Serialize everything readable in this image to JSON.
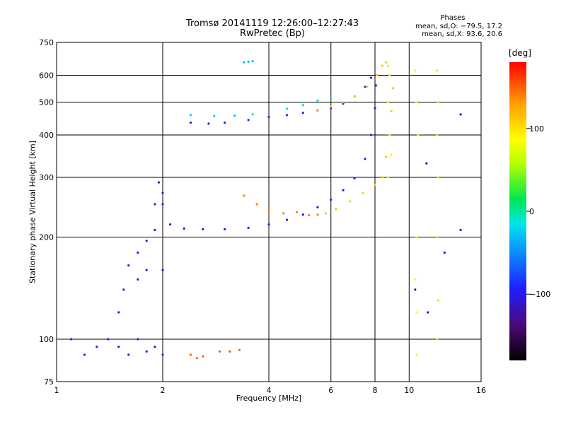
{
  "header": {
    "title_line1": "Tromsø 20141119 12:26:00–12:27:43",
    "title_line2": "RwPretec (Bp)"
  },
  "phase_box": {
    "title": "Phases",
    "line1": "mean, sd,O: −79.5, 17.2",
    "line2": "mean, sd,X:  93.6, 20.6"
  },
  "colorbar": {
    "unit": "[deg]",
    "ticks": [
      {
        "value": 100,
        "label": "100"
      },
      {
        "value": 0,
        "label": "0"
      },
      {
        "value": -100,
        "label": "−100"
      }
    ],
    "range": [
      -180,
      180
    ],
    "colors": [
      "#000000",
      "#4b0a7a",
      "#1e1eff",
      "#0a8cff",
      "#00e6e6",
      "#00e650",
      "#b4ff00",
      "#ffff00",
      "#ffa000",
      "#ff0000"
    ]
  },
  "chart_data": {
    "type": "scatter",
    "xlabel": "Frequency [MHz]",
    "ylabel": "Stationary phase Virtual Height [km]",
    "xscale": "log",
    "yscale": "log",
    "xlim": [
      1,
      16
    ],
    "ylim": [
      75,
      750
    ],
    "xticks": [
      1,
      2,
      4,
      6,
      8,
      10,
      16
    ],
    "xtick_labels": [
      "1",
      "2",
      "4",
      "6",
      "8",
      "10",
      "16"
    ],
    "yticks": [
      75,
      100,
      200,
      300,
      400,
      500,
      600,
      750
    ],
    "ytick_labels": [
      "75",
      "100",
      "200",
      "300",
      "400",
      "500",
      "600",
      "750"
    ],
    "grid": true,
    "series": [
      {
        "values": [
          [
            2.0,
            250
          ],
          [
            2.1,
            218
          ],
          [
            2.3,
            212
          ],
          [
            2.6,
            211
          ],
          [
            3.0,
            211
          ],
          [
            3.5,
            213
          ],
          [
            4.0,
            218
          ],
          [
            4.5,
            225
          ],
          [
            5.0,
            233
          ],
          [
            5.5,
            245
          ],
          [
            6.0,
            258
          ],
          [
            6.5,
            275
          ],
          [
            7.0,
            298
          ],
          [
            7.5,
            340
          ],
          [
            7.8,
            400
          ],
          [
            8.0,
            480
          ],
          [
            8.05,
            560
          ]
        ],
        "phase": -100
      },
      {
        "values": [
          [
            3.4,
            265
          ],
          [
            3.7,
            250
          ],
          [
            4.0,
            240
          ],
          [
            4.4,
            235
          ],
          [
            4.8,
            237
          ],
          [
            5.2,
            232
          ],
          [
            5.5,
            233
          ]
        ],
        "phase": 140
      },
      {
        "values": [
          [
            5.8,
            235
          ],
          [
            6.2,
            242
          ],
          [
            6.8,
            255
          ],
          [
            7.4,
            270
          ],
          [
            8.0,
            285
          ],
          [
            8.4,
            300
          ],
          [
            8.6,
            345
          ],
          [
            8.8,
            400
          ],
          [
            8.9,
            470
          ],
          [
            9.0,
            550
          ]
        ],
        "phase": 110
      },
      {
        "values": [
          [
            2.4,
            435
          ],
          [
            2.7,
            432
          ],
          [
            3.0,
            435
          ],
          [
            3.5,
            443
          ],
          [
            4.0,
            452
          ],
          [
            4.5,
            458
          ],
          [
            5.0,
            465
          ],
          [
            5.5,
            472
          ],
          [
            6.0,
            480
          ],
          [
            6.5,
            495
          ],
          [
            7.0,
            520
          ],
          [
            7.5,
            555
          ],
          [
            7.8,
            590
          ]
        ],
        "phase": -95
      },
      {
        "values": [
          [
            2.4,
            458
          ],
          [
            2.8,
            455
          ],
          [
            3.2,
            456
          ],
          [
            3.6,
            460
          ],
          [
            4.5,
            478
          ],
          [
            5.0,
            490
          ],
          [
            5.5,
            505
          ],
          [
            6.0,
            510
          ]
        ],
        "phase": -20
      },
      {
        "values": [
          [
            5.5,
            470
          ],
          [
            6.0,
            485
          ],
          [
            6.5,
            500
          ],
          [
            7.0,
            520
          ],
          [
            7.6,
            555
          ],
          [
            8.1,
            600
          ],
          [
            8.4,
            640
          ],
          [
            8.6,
            655
          ]
        ],
        "phase": 110
      },
      {
        "values": [
          [
            3.4,
            655
          ],
          [
            3.5,
            658
          ],
          [
            3.6,
            660
          ]
        ],
        "phase": -30
      },
      {
        "values": [
          [
            1.55,
            140
          ],
          [
            1.6,
            165
          ],
          [
            1.7,
            180
          ],
          [
            1.8,
            195
          ],
          [
            1.9,
            210
          ],
          [
            2.0,
            270
          ],
          [
            1.95,
            290
          ],
          [
            1.5,
            120
          ],
          [
            1.8,
            160
          ],
          [
            2.0,
            160
          ],
          [
            1.7,
            150
          ],
          [
            1.9,
            250
          ]
        ],
        "phase": -95
      },
      {
        "values": [
          [
            1.1,
            100
          ],
          [
            1.2,
            90
          ],
          [
            1.3,
            95
          ],
          [
            1.4,
            100
          ],
          [
            1.5,
            95
          ],
          [
            1.6,
            90
          ],
          [
            1.7,
            100
          ],
          [
            1.8,
            92
          ],
          [
            1.9,
            95
          ],
          [
            2.0,
            90
          ]
        ],
        "phase": -100
      },
      {
        "values": [
          [
            2.4,
            90
          ],
          [
            2.5,
            88
          ],
          [
            2.6,
            89
          ],
          [
            2.9,
            92
          ],
          [
            3.1,
            92
          ],
          [
            3.3,
            93
          ]
        ],
        "phase": 150
      },
      {
        "values": [
          [
            8.7,
            640
          ],
          [
            8.8,
            600
          ],
          [
            8.7,
            500
          ],
          [
            8.8,
            400
          ],
          [
            8.7,
            300
          ],
          [
            8.9,
            350
          ]
        ],
        "phase": 95
      },
      {
        "values": [
          [
            10.4,
            620
          ],
          [
            10.5,
            500
          ],
          [
            10.6,
            400
          ],
          [
            10.5,
            200
          ],
          [
            10.4,
            150
          ],
          [
            10.5,
            120
          ],
          [
            10.5,
            90
          ]
        ],
        "phase": 90
      },
      {
        "values": [
          [
            12.0,
            620
          ],
          [
            12.1,
            500
          ],
          [
            12.0,
            400
          ],
          [
            12.1,
            300
          ],
          [
            12.0,
            200
          ],
          [
            12.1,
            130
          ],
          [
            12.0,
            100
          ]
        ],
        "phase": 60
      },
      {
        "values": [
          [
            11.2,
            330
          ],
          [
            11.3,
            120
          ],
          [
            10.4,
            140
          ],
          [
            14.0,
            210
          ],
          [
            12.6,
            180
          ],
          [
            14.0,
            460
          ]
        ],
        "phase": -120
      }
    ]
  }
}
